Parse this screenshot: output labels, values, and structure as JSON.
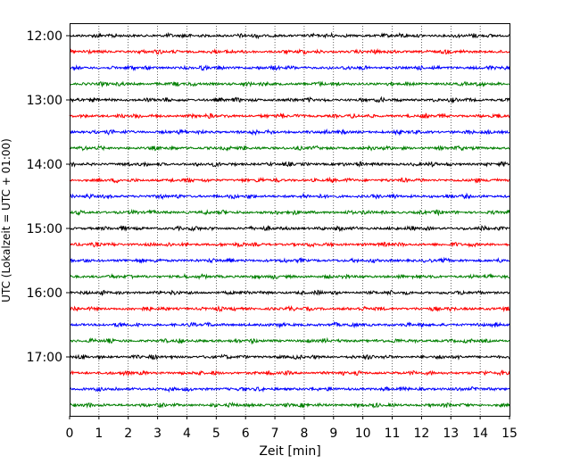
{
  "chart_data": {
    "type": "line",
    "title": "",
    "xlabel": "Zeit  [min]",
    "ylabel": "UTC (Lokalzeit = UTC + 01:00)",
    "xlim": [
      0,
      15
    ],
    "x_ticks": [
      "0",
      "1",
      "2",
      "3",
      "4",
      "5",
      "6",
      "7",
      "8",
      "9",
      "10",
      "11",
      "12",
      "13",
      "14",
      "15"
    ],
    "y_ticks": [
      "12:00",
      "13:00",
      "14:00",
      "15:00",
      "16:00",
      "17:00"
    ],
    "grid": "vertical dotted lines at each minute",
    "colors": [
      "#000000",
      "#ff0000",
      "#0000ff",
      "#007f00"
    ],
    "series": [
      {
        "start": "12:00",
        "color": "#000000"
      },
      {
        "start": "12:15",
        "color": "#ff0000"
      },
      {
        "start": "12:30",
        "color": "#0000ff"
      },
      {
        "start": "12:45",
        "color": "#007f00"
      },
      {
        "start": "13:00",
        "color": "#000000"
      },
      {
        "start": "13:15",
        "color": "#ff0000"
      },
      {
        "start": "13:30",
        "color": "#0000ff"
      },
      {
        "start": "13:45",
        "color": "#007f00"
      },
      {
        "start": "14:00",
        "color": "#000000"
      },
      {
        "start": "14:15",
        "color": "#ff0000"
      },
      {
        "start": "14:30",
        "color": "#0000ff"
      },
      {
        "start": "14:45",
        "color": "#007f00"
      },
      {
        "start": "15:00",
        "color": "#000000"
      },
      {
        "start": "15:15",
        "color": "#ff0000"
      },
      {
        "start": "15:30",
        "color": "#0000ff"
      },
      {
        "start": "15:45",
        "color": "#007f00"
      },
      {
        "start": "16:00",
        "color": "#000000"
      },
      {
        "start": "16:15",
        "color": "#ff0000"
      },
      {
        "start": "16:30",
        "color": "#0000ff"
      },
      {
        "start": "16:45",
        "color": "#007f00"
      },
      {
        "start": "17:00",
        "color": "#000000"
      },
      {
        "start": "17:15",
        "color": "#ff0000"
      },
      {
        "start": "17:30",
        "color": "#0000ff"
      },
      {
        "start": "17:45",
        "color": "#007f00"
      }
    ]
  }
}
